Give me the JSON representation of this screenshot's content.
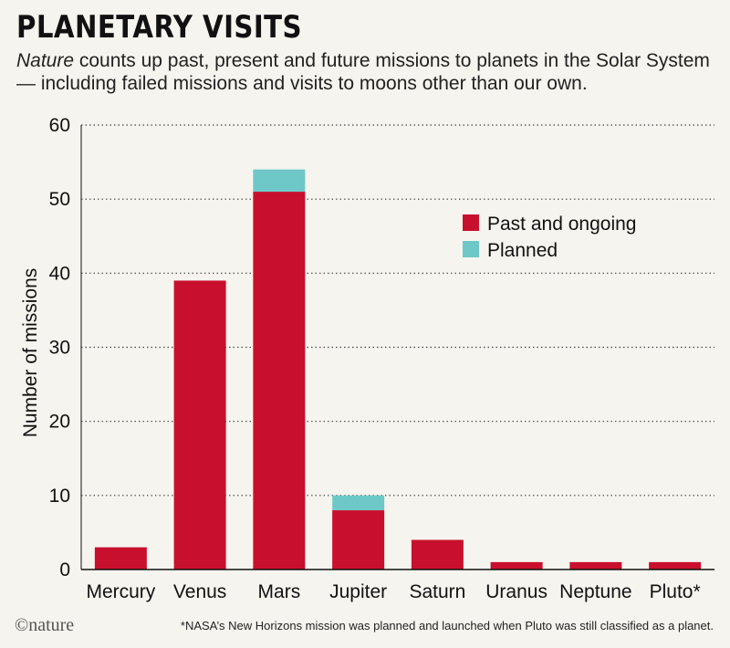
{
  "header": {
    "title": "PLANETARY VISITS",
    "subtitle_italic": "Nature",
    "subtitle_rest": " counts up past, present and future missions to planets in the Solar System — including failed missions and visits to moons other than our own."
  },
  "footer": {
    "brand": "©nature",
    "footnote": "*NASA’s New Horizons mission was planned and launched when Pluto was still classified as a planet."
  },
  "colors": {
    "past": "#c8102e",
    "planned": "#6ec8c8",
    "grid": "#444444",
    "background": "#f5f4ef"
  },
  "chart_data": {
    "type": "bar",
    "stacked": true,
    "title": "PLANETARY VISITS",
    "ylabel": "Number of missions",
    "xlabel": "",
    "ylim": [
      0,
      60
    ],
    "yticks": [
      0,
      10,
      20,
      30,
      40,
      50,
      60
    ],
    "grid": "horizontal-dotted",
    "legend_position": "right-upper",
    "categories": [
      "Mercury",
      "Venus",
      "Mars",
      "Jupiter",
      "Saturn",
      "Uranus",
      "Neptune",
      "Pluto*"
    ],
    "series": [
      {
        "name": "Past and ongoing",
        "color": "#c8102e",
        "values": [
          3,
          39,
          51,
          8,
          4,
          1,
          1,
          1
        ]
      },
      {
        "name": "Planned",
        "color": "#6ec8c8",
        "values": [
          0,
          0,
          3,
          2,
          0,
          0,
          0,
          0
        ]
      }
    ]
  }
}
